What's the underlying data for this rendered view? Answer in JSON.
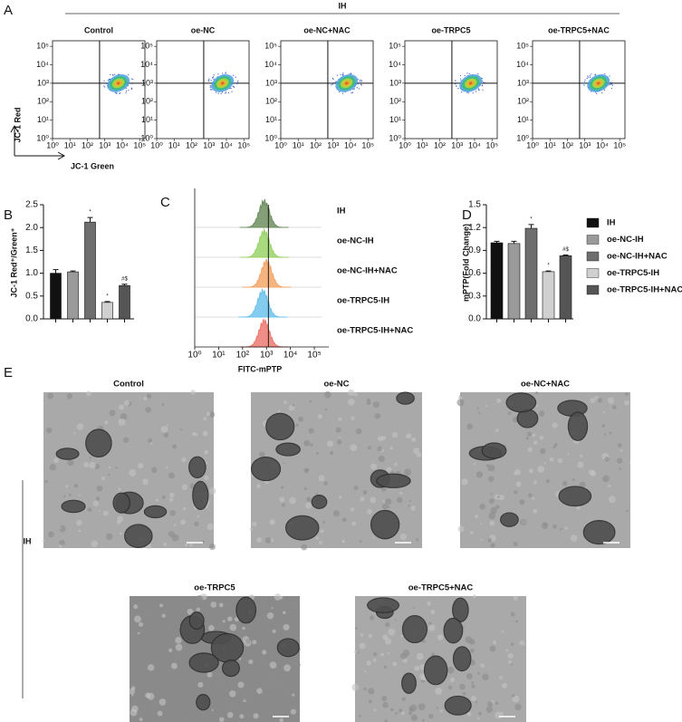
{
  "panel_labels": [
    "A",
    "B",
    "C",
    "D",
    "E"
  ],
  "chart_data": [
    {
      "type": "flow",
      "group_label": "IH",
      "titles": [
        "Control",
        "oe-NC",
        "oe-NC+NAC",
        "oe-TRPC5",
        "oe-TRPC5+NAC"
      ],
      "y_label": "JC-1 Red",
      "x_label": "JC-1 Green",
      "log": true,
      "xlim": [
        1,
        200000
      ],
      "ylim": [
        1,
        200000
      ],
      "xticks": [
        {
          "value": 1,
          "label": "10⁰"
        },
        {
          "value": 10,
          "label": "10¹"
        },
        {
          "value": 100,
          "label": "10²"
        },
        {
          "value": 1000,
          "label": "10³"
        },
        {
          "value": 10000,
          "label": "10⁴"
        },
        {
          "value": 100000,
          "label": "10⁵"
        }
      ],
      "yticks": [
        {
          "value": 1,
          "label": "10⁰"
        },
        {
          "value": 10,
          "label": "10¹"
        },
        {
          "value": 100,
          "label": "10²"
        },
        {
          "value": 1000,
          "label": "10³"
        },
        {
          "value": 10000,
          "label": "10⁴"
        },
        {
          "value": 100000,
          "label": "10⁵"
        }
      ],
      "gate": {
        "x": 500,
        "y": 1000
      },
      "population": {
        "x": 6000,
        "y": 1000
      }
    },
    {
      "type": "bar",
      "y_label": "JC-1 Red⁺/Green⁺",
      "values": [
        1.0,
        1.03,
        2.12,
        0.36,
        0.73
      ],
      "errors": [
        0.08,
        0.02,
        0.1,
        0.02,
        0.03
      ],
      "colors": [
        "#111111",
        "#9a9a9a",
        "#6e6e6e",
        "#d0d0d0",
        "#555555"
      ],
      "annotations": [
        null,
        null,
        "*",
        "*",
        "#$"
      ],
      "ylim": [
        0,
        2.5
      ],
      "yticks": [
        {
          "value": 0,
          "label": "0.0"
        },
        {
          "value": 0.5,
          "label": "0.5"
        },
        {
          "value": 1,
          "label": "1.0"
        },
        {
          "value": 1.5,
          "label": "1.5"
        },
        {
          "value": 2,
          "label": "2.0"
        },
        {
          "value": 2.5,
          "label": "2.5"
        }
      ]
    },
    {
      "type": "ridgeline",
      "x_label": "FITC-mPTP",
      "log": true,
      "xlim": [
        1,
        200000
      ],
      "xticks": [
        {
          "value": 1,
          "label": "10⁰"
        },
        {
          "value": 10,
          "label": "10¹"
        },
        {
          "value": 100,
          "label": "10²"
        },
        {
          "value": 1000,
          "label": "10³"
        },
        {
          "value": 10000,
          "label": "10⁴"
        },
        {
          "value": 100000,
          "label": "10⁵"
        }
      ],
      "reference_line": 1200,
      "series": [
        {
          "name": "IH",
          "color": "#6f8f62",
          "peak": 800
        },
        {
          "name": "oe-NC-IH",
          "color": "#9ad36a",
          "peak": 800
        },
        {
          "name": "oe-NC-IH+NAC",
          "color": "#f4a76a",
          "peak": 1000
        },
        {
          "name": "oe-TRPC5-IH",
          "color": "#6ec3ec",
          "peak": 700
        },
        {
          "name": "oe-TRPC5-IH+NAC",
          "color": "#ec7a72",
          "peak": 800
        }
      ]
    },
    {
      "type": "bar",
      "y_label": "mPTP(Fold Change)",
      "categories": [
        "IH",
        "oe-NC-IH",
        "oe-NC-IH+NAC",
        "oe-TRPC5-IH",
        "oe-TRPC5-IH+NAC"
      ],
      "values": [
        1.0,
        0.99,
        1.19,
        0.62,
        0.83
      ],
      "errors": [
        0.02,
        0.03,
        0.05,
        0.01,
        0.01
      ],
      "colors": [
        "#111111",
        "#9a9a9a",
        "#6e6e6e",
        "#d0d0d0",
        "#555555"
      ],
      "annotations": [
        null,
        null,
        "*",
        "*",
        "#$"
      ],
      "legend": "right",
      "ylim": [
        0,
        1.5
      ],
      "yticks": [
        {
          "value": 0,
          "label": "0.0"
        },
        {
          "value": 0.3,
          "label": "0.3"
        },
        {
          "value": 0.6,
          "label": "0.6"
        },
        {
          "value": 0.9,
          "label": "0.9"
        },
        {
          "value": 1.2,
          "label": "1.2"
        },
        {
          "value": 1.5,
          "label": "1.5"
        }
      ]
    }
  ],
  "panel_e": {
    "group_label": "IH",
    "titles": [
      "Control",
      "oe-NC",
      "oe-NC+NAC",
      "oe-TRPC5",
      "oe-TRPC5+NAC"
    ]
  }
}
